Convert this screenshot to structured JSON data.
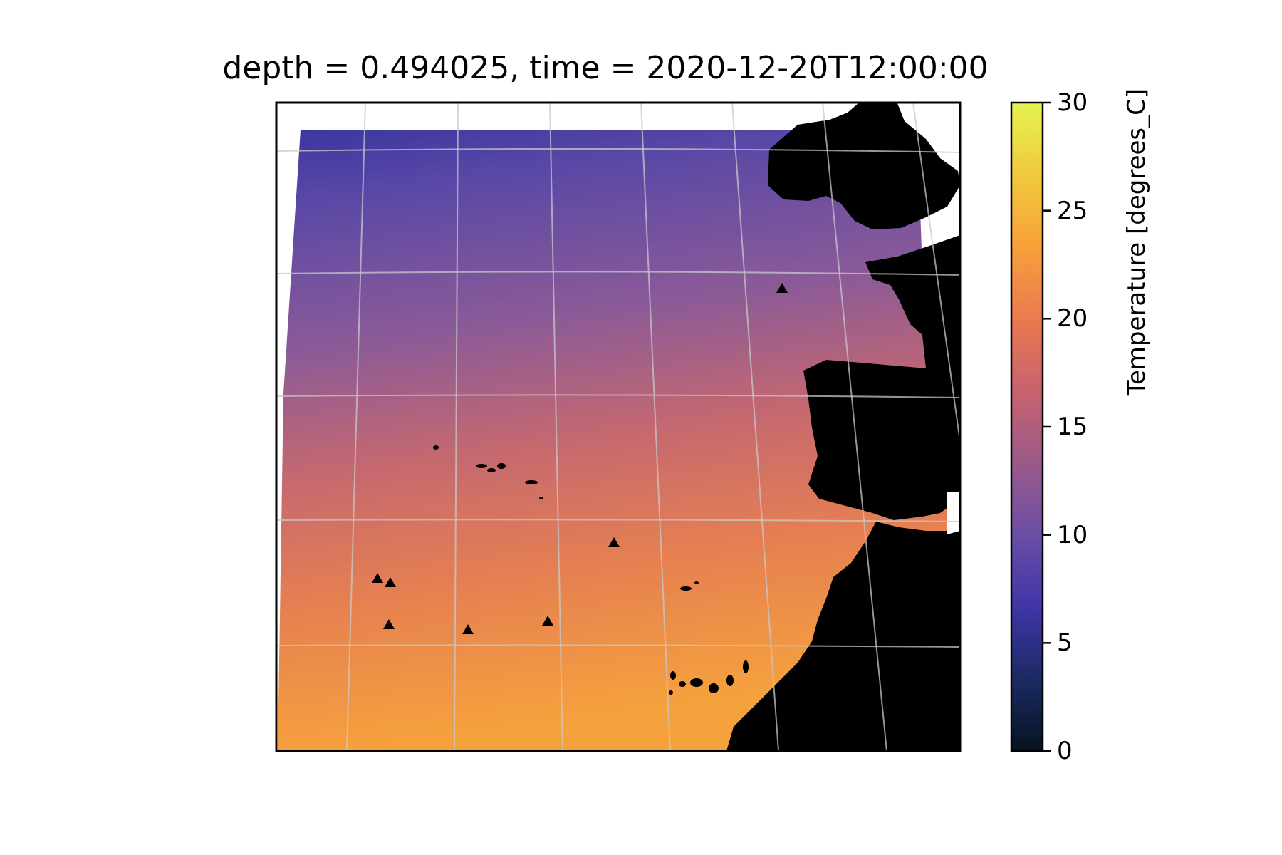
{
  "title": "depth = 0.494025, time = 2020-12-20T12:00:00",
  "colorbar": {
    "label": "Temperature [degrees_C]",
    "ticks": [
      "0",
      "5",
      "10",
      "15",
      "20",
      "25",
      "30"
    ],
    "range": [
      0,
      30
    ],
    "colormap_stops": [
      "#04141f",
      "#1c2a63",
      "#3f35a8",
      "#6b4ea6",
      "#9a5a8a",
      "#c8636e",
      "#ea7a4f",
      "#f8a03a",
      "#f2c93e",
      "#e4f450"
    ]
  },
  "map": {
    "land_color": "#000000",
    "ocean_cold_color": "#3a36a0",
    "ocean_mid_color": "#8a5a98",
    "ocean_warm_color": "#f6a23c",
    "gridlines": true,
    "marker_symbol": "triangle"
  }
}
